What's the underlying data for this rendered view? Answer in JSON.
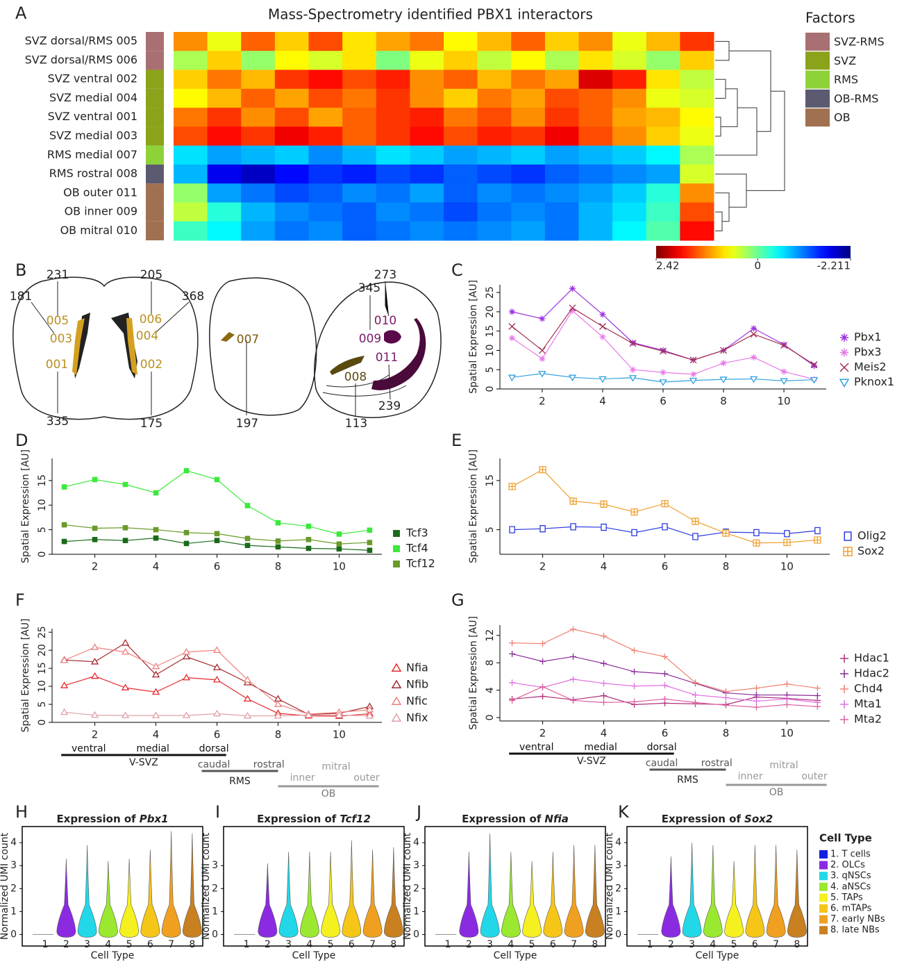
{
  "chart_data": [
    {
      "type": "heatmap",
      "panel": "A",
      "title": "Mass-Spectrometry identified PBX1 interactors",
      "rows": [
        "SVZ dorsal/RMS 005",
        "SVZ dorsal/RMS 006",
        "SVZ ventral 002",
        "SVZ medial 004",
        "SVZ ventral 001",
        "SVZ medial 003",
        "RMS medial 007",
        "RMS rostral 008",
        "OB outer 011",
        "OB inner 009",
        "OB mitral 010"
      ],
      "row_factor": [
        0,
        0,
        1,
        1,
        1,
        1,
        2,
        3,
        4,
        4,
        4
      ],
      "legend_title": "Factors",
      "factors": [
        {
          "name": "SVZ-RMS",
          "color": "#a87072"
        },
        {
          "name": "SVZ",
          "color": "#8aa31a"
        },
        {
          "name": "RMS",
          "color": "#8ed23a"
        },
        {
          "name": "OB-RMS",
          "color": "#5c5a70"
        },
        {
          "name": "OB",
          "color": "#a07050"
        }
      ],
      "clim": [
        2.42,
        -2.211
      ],
      "cbar_ticks": [
        2.42,
        0,
        -2.211
      ],
      "values": [
        [
          1.2,
          0.6,
          1.4,
          0.9,
          1.5,
          0.8,
          1.1,
          1.3,
          0.7,
          1.0,
          1.4,
          0.9,
          1.2,
          0.6,
          1.0,
          1.6
        ],
        [
          0.3,
          0.9,
          0.2,
          0.7,
          0.5,
          0.8,
          0.1,
          0.6,
          0.9,
          0.4,
          0.7,
          0.3,
          0.8,
          0.5,
          0.2,
          0.9
        ],
        [
          0.9,
          1.3,
          1.0,
          1.6,
          1.8,
          1.5,
          1.7,
          1.2,
          1.4,
          1.0,
          1.3,
          1.1,
          2.0,
          1.7,
          0.8,
          0.4
        ],
        [
          0.7,
          1.0,
          1.4,
          1.1,
          1.5,
          1.3,
          1.6,
          1.2,
          0.9,
          1.3,
          1.1,
          1.5,
          1.4,
          1.2,
          0.6,
          0.5
        ],
        [
          1.3,
          1.6,
          1.2,
          1.5,
          1.1,
          1.4,
          1.6,
          1.7,
          1.3,
          1.5,
          1.2,
          1.6,
          1.4,
          1.1,
          1.0,
          0.7
        ],
        [
          1.5,
          1.8,
          1.6,
          1.9,
          1.7,
          1.4,
          1.6,
          1.8,
          1.5,
          1.7,
          1.6,
          1.9,
          1.5,
          1.2,
          0.9,
          0.6
        ],
        [
          -0.6,
          -0.9,
          -0.8,
          -0.7,
          -1.0,
          -0.8,
          -0.6,
          -0.7,
          -0.9,
          -0.8,
          -0.7,
          -0.9,
          -0.8,
          -0.7,
          -0.5,
          0.3
        ],
        [
          -0.8,
          -1.7,
          -1.9,
          -1.6,
          -1.4,
          -1.5,
          -1.3,
          -1.4,
          -1.2,
          -1.3,
          -1.4,
          -1.2,
          -1.1,
          -1.0,
          -0.9,
          0.5
        ],
        [
          0.2,
          -0.9,
          -1.1,
          -1.3,
          -1.2,
          -1.0,
          -1.1,
          -0.9,
          -1.2,
          -1.0,
          -1.1,
          -1.0,
          -0.9,
          -0.7,
          -0.3,
          1.2
        ],
        [
          0.4,
          -0.3,
          -0.8,
          -1.0,
          -1.1,
          -1.2,
          -1.0,
          -1.1,
          -1.3,
          -1.1,
          -1.0,
          -1.1,
          -0.8,
          -0.6,
          -0.2,
          1.5
        ],
        [
          -0.2,
          -0.5,
          -0.9,
          -1.1,
          -1.0,
          -1.2,
          -1.1,
          -1.0,
          -1.1,
          -1.0,
          -0.9,
          -1.1,
          -0.8,
          -0.5,
          -0.1,
          1.8
        ]
      ]
    },
    {
      "type": "line",
      "panel": "C",
      "ylabel": "Spatial Expression [AU]",
      "x": [
        1,
        2,
        3,
        4,
        5,
        6,
        7,
        8,
        9,
        10,
        11
      ],
      "xlim": [
        0.6,
        11.4
      ],
      "ylim": [
        0,
        27
      ],
      "xticks": [
        2,
        4,
        6,
        8,
        10
      ],
      "yticks": [
        0,
        5,
        10,
        15,
        20,
        25
      ],
      "series": [
        {
          "name": "Pbx1",
          "color": "#9b30e0",
          "marker": "asterisk",
          "values": [
            20,
            18.2,
            26,
            19.3,
            12,
            10,
            7.5,
            10,
            15.7,
            11.5,
            6
          ]
        },
        {
          "name": "Pbx3",
          "color": "#e878e8",
          "marker": "asterisk",
          "values": [
            13.2,
            7.8,
            20.3,
            13.5,
            5,
            4.3,
            3.8,
            6.7,
            8.2,
            4.5,
            2.5
          ]
        },
        {
          "name": "Meis2",
          "color": "#a03050",
          "marker": "x",
          "values": [
            16.2,
            10,
            21,
            16.2,
            11.8,
            9.8,
            7.5,
            10,
            14.2,
            11.3,
            6.3
          ]
        },
        {
          "name": "Pknox1",
          "color": "#30a0e0",
          "marker": "tri-down",
          "values": [
            3,
            4,
            3,
            2.6,
            2.9,
            1.8,
            2.2,
            2.5,
            2.6,
            2.1,
            2.4
          ]
        }
      ]
    },
    {
      "type": "line",
      "panel": "D",
      "ylabel": "Spatial Expression [AU]",
      "x": [
        1,
        2,
        3,
        4,
        5,
        6,
        7,
        8,
        9,
        10,
        11
      ],
      "xlim": [
        0.6,
        11.4
      ],
      "ylim": [
        0,
        19.5
      ],
      "xticks": [
        2,
        4,
        6,
        8,
        10
      ],
      "yticks": [
        0,
        5,
        10,
        15
      ],
      "series": [
        {
          "name": "Tcf3",
          "color": "#1a6a1a",
          "marker": "square",
          "values": [
            2.6,
            3,
            2.8,
            3.3,
            2.2,
            2.8,
            1.8,
            1.5,
            1.2,
            1.1,
            0.8
          ]
        },
        {
          "name": "Tcf4",
          "color": "#3ce83c",
          "marker": "square",
          "values": [
            13.7,
            15.2,
            14.2,
            12.5,
            17,
            15.2,
            9.9,
            6.4,
            5.7,
            4.1,
            4.9
          ]
        },
        {
          "name": "Tcf12",
          "color": "#6a9a2a",
          "marker": "square",
          "values": [
            6,
            5.3,
            5.4,
            5,
            4.4,
            4.2,
            3.2,
            2.7,
            3,
            2.1,
            2.4
          ]
        }
      ]
    },
    {
      "type": "line",
      "panel": "E",
      "ylabel": "Spatial Expression [AU]",
      "x": [
        1,
        2,
        3,
        4,
        5,
        6,
        7,
        8,
        9,
        10,
        11
      ],
      "xlim": [
        0.6,
        11.4
      ],
      "ylim": [
        0,
        19.5
      ],
      "xticks": [
        2,
        4,
        6,
        8,
        10
      ],
      "yticks": [
        5,
        15
      ],
      "series": [
        {
          "name": "Olig2",
          "color": "#2a3ae0",
          "marker": "hollow-square",
          "values": [
            5,
            5.2,
            5.6,
            5.5,
            4.4,
            5.6,
            3.6,
            4.5,
            4.4,
            4.2,
            4.8
          ]
        },
        {
          "name": "Sox2",
          "color": "#f0a030",
          "marker": "square-plus",
          "values": [
            13.8,
            17.2,
            10.8,
            10.2,
            8.6,
            10.3,
            6.7,
            4.3,
            2.3,
            2.4,
            2.9
          ]
        }
      ]
    },
    {
      "type": "line",
      "panel": "F",
      "ylabel": "Spatial Expression [AU]",
      "x": [
        1,
        2,
        3,
        4,
        5,
        6,
        7,
        8,
        9,
        10,
        11
      ],
      "xlim": [
        0.6,
        11.4
      ],
      "ylim": [
        0,
        26
      ],
      "xticks": [
        2,
        4,
        6,
        8,
        10
      ],
      "yticks": [
        0,
        5,
        10,
        15,
        20,
        25
      ],
      "series": [
        {
          "name": "Nfia",
          "color": "#e8282d",
          "marker": "tri-up",
          "values": [
            10.2,
            12.8,
            9.6,
            8.4,
            12.4,
            11.8,
            6.5,
            2.5,
            1.8,
            1.7,
            2.4
          ]
        },
        {
          "name": "Nfib",
          "color": "#a52a2a",
          "marker": "tri-up",
          "values": [
            17.3,
            16.8,
            22,
            13.2,
            18.2,
            15.2,
            11,
            6.5,
            2.2,
            2.5,
            4.4
          ]
        },
        {
          "name": "Nfic",
          "color": "#f08080",
          "marker": "tri-up",
          "values": [
            17.2,
            20.8,
            19.5,
            15.5,
            19.5,
            20,
            11.8,
            5,
            2.3,
            2.8,
            3.5
          ]
        },
        {
          "name": "Nfix",
          "color": "#e0a0a8",
          "marker": "tri-up",
          "values": [
            2.8,
            2,
            1.9,
            1.9,
            1.9,
            2.4,
            1.8,
            1.8,
            2,
            2,
            1.8
          ]
        }
      ],
      "regions": [
        {
          "name": "V-SVZ",
          "parts": [
            "ventral",
            "medial",
            "dorsal"
          ]
        },
        {
          "name": "RMS",
          "parts": [
            "caudal",
            "rostral"
          ]
        },
        {
          "name": "OB",
          "parts": [
            "inner",
            "mitral",
            "outer"
          ]
        }
      ]
    },
    {
      "type": "line",
      "panel": "G",
      "ylabel": "Spatial Expression [AU]",
      "x": [
        1,
        2,
        3,
        4,
        5,
        6,
        7,
        8,
        9,
        10,
        11
      ],
      "xlim": [
        0.6,
        11.4
      ],
      "ylim": [
        -0.5,
        13.5
      ],
      "xticks": [
        2,
        4,
        6,
        8,
        10
      ],
      "yticks": [
        0,
        4,
        8,
        12
      ],
      "series": [
        {
          "name": "Hdac1",
          "color": "#b0307a",
          "marker": "plus",
          "values": [
            2.7,
            3.1,
            2.6,
            3.2,
            1.9,
            2.1,
            2,
            1.9,
            3,
            2.8,
            2.5
          ]
        },
        {
          "name": "Hdac2",
          "color": "#8b2a9a",
          "marker": "plus",
          "values": [
            9.3,
            8.2,
            8.9,
            7.9,
            6.7,
            6.4,
            5,
            3.6,
            3.3,
            3.3,
            3.2
          ]
        },
        {
          "name": "Chd4",
          "color": "#f08070",
          "marker": "plus",
          "values": [
            10.9,
            10.8,
            12.9,
            11.9,
            9.8,
            8.9,
            5.1,
            3.8,
            4.3,
            4.9,
            4.3
          ]
        },
        {
          "name": "Mta1",
          "color": "#e070e0",
          "marker": "plus",
          "values": [
            5.1,
            4.4,
            5.6,
            5,
            4.6,
            4.7,
            3.3,
            2.9,
            2.4,
            2.7,
            2.2
          ]
        },
        {
          "name": "Mta2",
          "color": "#e060a0",
          "marker": "plus",
          "values": [
            2.5,
            4.5,
            2.5,
            2.2,
            2.3,
            2.7,
            2.2,
            1.8,
            1.5,
            1.9,
            1.6
          ]
        }
      ],
      "regions": [
        {
          "name": "V-SVZ",
          "parts": [
            "ventral",
            "medial",
            "dorsal"
          ]
        },
        {
          "name": "RMS",
          "parts": [
            "caudal",
            "rostral"
          ]
        },
        {
          "name": "OB",
          "parts": [
            "inner",
            "mitral",
            "outer"
          ]
        }
      ]
    },
    {
      "type": "violin",
      "panel": "H",
      "title": "Expression of",
      "gene": "Pbx1",
      "ylabel": "Normalized UMI count",
      "xlabel": "Cell Type",
      "categories": [
        "1",
        "2",
        "3",
        "4",
        "5",
        "6",
        "7",
        "8"
      ],
      "values": [
        0,
        3.3,
        3.9,
        3.2,
        3.3,
        3.7,
        4.5,
        4.4
      ],
      "ylim": [
        -0.5,
        4.7
      ],
      "yticks": [
        0,
        1,
        2,
        3,
        4
      ]
    },
    {
      "type": "violin",
      "panel": "I",
      "title": "Expression of",
      "gene": "Tcf12",
      "ylabel": "Normalized UMI count",
      "xlabel": "Cell Type",
      "categories": [
        "1",
        "2",
        "3",
        "4",
        "5",
        "6",
        "7",
        "8"
      ],
      "values": [
        0,
        3.1,
        3.6,
        3.6,
        3.6,
        4.1,
        3.7,
        3.8
      ],
      "ylim": [
        -0.5,
        4.7
      ],
      "yticks": [
        0,
        1,
        2,
        3
      ]
    },
    {
      "type": "violin",
      "panel": "J",
      "title": "Expression of",
      "gene": "Nfia",
      "ylabel": "Normalized UMI count",
      "xlabel": "Cell Type",
      "categories": [
        "1",
        "2",
        "3",
        "4",
        "5",
        "6",
        "7",
        "8"
      ],
      "values": [
        0,
        3.6,
        4.4,
        3.6,
        3.2,
        3.6,
        3.9,
        3.9
      ],
      "ylim": [
        -0.5,
        4.7
      ],
      "yticks": [
        0,
        1,
        2,
        3,
        4
      ]
    },
    {
      "type": "violin",
      "panel": "K",
      "title": "Expression of",
      "gene": "Sox2",
      "ylabel": "Normalized UMI count",
      "xlabel": "Cell Type",
      "categories": [
        "1",
        "2",
        "3",
        "4",
        "5",
        "6",
        "7",
        "8"
      ],
      "values": [
        0,
        3.4,
        4,
        3.9,
        3.2,
        3.9,
        3.9,
        3.7
      ],
      "ylim": [
        -0.5,
        4.7
      ],
      "yticks": [
        0,
        1,
        2,
        3,
        4
      ]
    }
  ],
  "cell_types": {
    "title": "Cell Type",
    "names": [
      "1. T cells",
      "2. OLCs",
      "3. qNSCs",
      "4. aNSCs",
      "5. TAPs",
      "6. mTAPs",
      "7. early NBs",
      "8. late NBs"
    ],
    "colors": [
      "#1020e0",
      "#8a2be2",
      "#22d8e8",
      "#9be830",
      "#f5f020",
      "#f5c518",
      "#f0a020",
      "#c88020"
    ]
  },
  "diagram": {
    "panel": "B",
    "labels": [
      "005",
      "003",
      "001",
      "006",
      "004",
      "002",
      "007",
      "010",
      "009",
      "011",
      "008"
    ],
    "counts": [
      "231",
      "181",
      "335",
      "205",
      "368",
      "175",
      "197",
      "273",
      "345",
      "239",
      "113"
    ]
  }
}
